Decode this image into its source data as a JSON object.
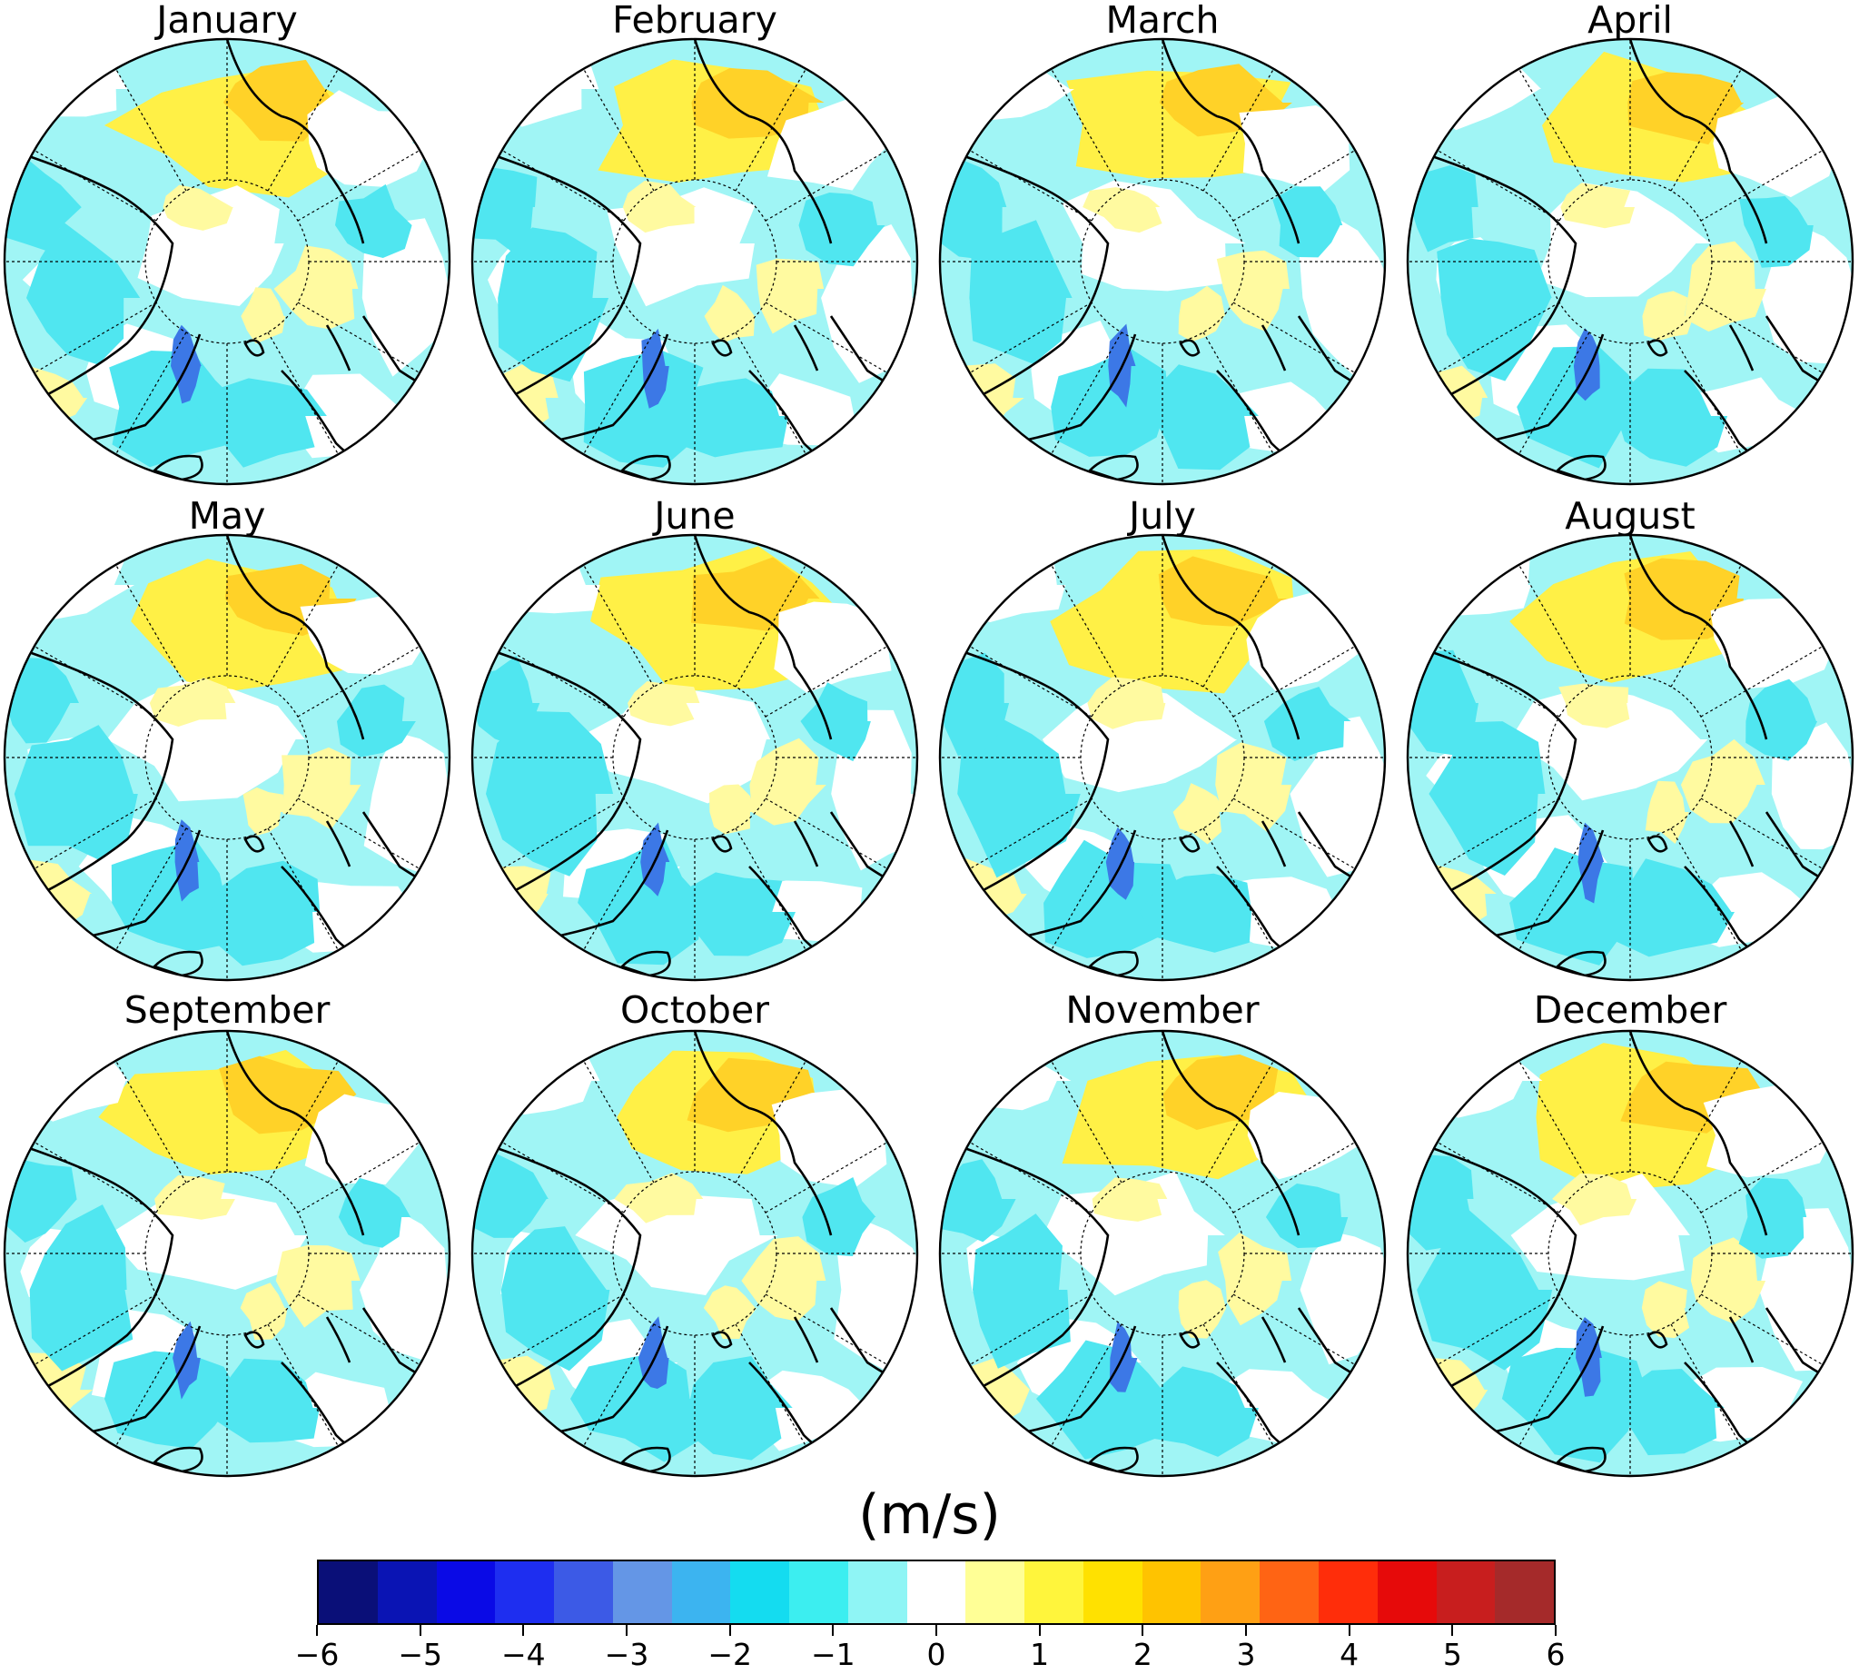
{
  "figure": {
    "panels": [
      {
        "title": "January"
      },
      {
        "title": "February"
      },
      {
        "title": "March"
      },
      {
        "title": "April"
      },
      {
        "title": "May"
      },
      {
        "title": "June"
      },
      {
        "title": "July"
      },
      {
        "title": "August"
      },
      {
        "title": "September"
      },
      {
        "title": "October"
      },
      {
        "title": "November"
      },
      {
        "title": "December"
      }
    ],
    "unit_label": "(m/s)"
  },
  "colorbar": {
    "vmin": -6,
    "vmax": 6,
    "colors": [
      "#0a0f78",
      "#0a14b4",
      "#0a0ae6",
      "#1e2ef0",
      "#3c5ae6",
      "#6496e6",
      "#3cb4f0",
      "#14dcf0",
      "#3ceef0",
      "#8ff5f5",
      "#ffffff",
      "#ffff96",
      "#fff53c",
      "#ffe100",
      "#ffc300",
      "#ffa014",
      "#ff6414",
      "#ff2d0a",
      "#e60a0a",
      "#c81e1e",
      "#a52a2a"
    ],
    "ticks": [
      "−6",
      "−5",
      "−4",
      "−3",
      "−2",
      "−1",
      "0",
      "1",
      "2",
      "3",
      "4",
      "5",
      "6"
    ]
  },
  "map_style": {
    "coast_color": "#000000",
    "grid_color": "#000000",
    "fill_neutral": "#ffffff",
    "fill_weak_negative": "#a0f5f5",
    "fill_negative": "#50e6f0",
    "fill_strong_negative": "#3c78e6",
    "fill_weak_positive": "#fffaa0",
    "fill_positive": "#fff046",
    "fill_strong_positive": "#ffd228"
  }
}
